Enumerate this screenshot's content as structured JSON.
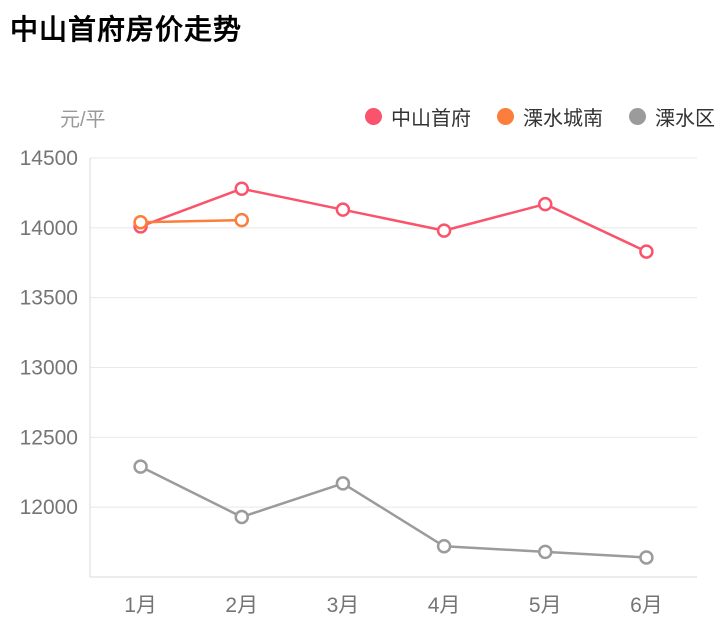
{
  "title": "中山首府房价走势",
  "chart_data": {
    "type": "line",
    "unit_label": "元/平",
    "categories": [
      "1月",
      "2月",
      "3月",
      "4月",
      "5月",
      "6月"
    ],
    "series": [
      {
        "name": "中山首府",
        "color": "#F9546C",
        "values": [
          14010,
          14280,
          14130,
          13980,
          14170,
          13830
        ]
      },
      {
        "name": "溧水城南",
        "color": "#FB7E3C",
        "values": [
          14040,
          14055,
          null,
          null,
          null,
          null
        ]
      },
      {
        "name": "溧水区",
        "color": "#9B9B9B",
        "values": [
          12290,
          11930,
          12170,
          11720,
          11680,
          11640
        ]
      }
    ],
    "yticks": [
      14500,
      14000,
      13500,
      13000,
      12500,
      12000
    ],
    "ylim": [
      11500,
      14500
    ],
    "grid": true,
    "legend_position": "top-right",
    "point_style": "hollow-circle"
  },
  "colors": {
    "grid_line": "#E8E8E8",
    "axis_line": "#D9D9D9",
    "tick_text": "#757575",
    "legend_text": "#333333",
    "title_text": "#000000",
    "point_fill": "#FFFFFF"
  }
}
